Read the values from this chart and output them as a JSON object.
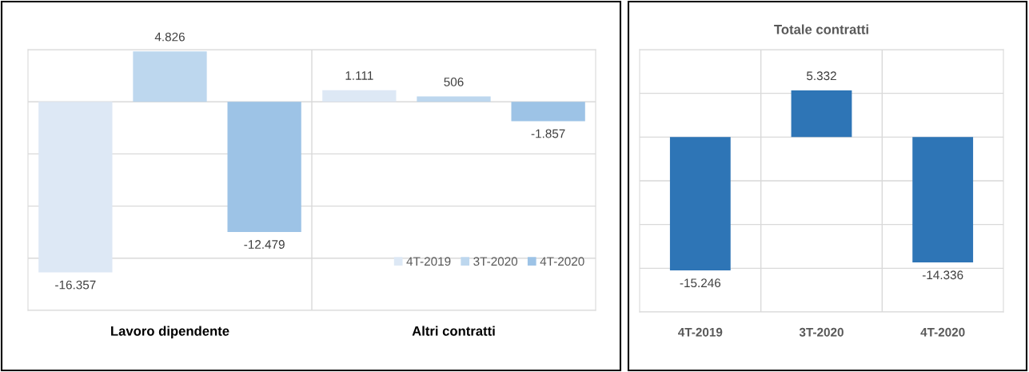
{
  "chart_data": [
    {
      "type": "bar",
      "categories": [
        "Lavoro dipendente",
        "Altri contratti"
      ],
      "series": [
        {
          "name": "4T-2019",
          "color": "#dde8f5",
          "values": [
            -16357,
            1111
          ],
          "value_labels": [
            "-16.357",
            "1.111"
          ]
        },
        {
          "name": "3T-2020",
          "color": "#bdd7ee",
          "values": [
            4826,
            506
          ],
          "value_labels": [
            "4.826",
            "506"
          ]
        },
        {
          "name": "4T-2020",
          "color": "#9dc3e6",
          "values": [
            -12479,
            -1857
          ],
          "value_labels": [
            "-12.479",
            "-1.857"
          ]
        }
      ],
      "ylim": [
        -20000,
        5000
      ],
      "yticks": [
        {
          "value": -20000,
          "label": null
        },
        {
          "value": -15000,
          "label": null
        },
        {
          "value": -10000,
          "label": null
        },
        {
          "value": -5000,
          "label": null
        },
        {
          "value": 0,
          "label": null
        },
        {
          "value": 5000,
          "label": null
        }
      ],
      "tick_labels": "x",
      "grid": true,
      "legend": "bottom right"
    },
    {
      "type": "bar",
      "title": "Totale contratti",
      "categories": [
        "4T-2019",
        "3T-2020",
        "4T-2020"
      ],
      "series": [
        {
          "color": "#2e75b6",
          "values": [
            -15246,
            5332,
            -14336
          ],
          "value_labels": [
            "-15.246",
            "5.332",
            "-14.336"
          ]
        }
      ],
      "ylim": [
        -20000,
        10000
      ],
      "yticks": [
        {
          "value": -20000,
          "label": null
        },
        {
          "value": -15000,
          "label": null
        },
        {
          "value": -10000,
          "label": null
        },
        {
          "value": -5000,
          "label": null
        },
        {
          "value": 0,
          "label": null
        },
        {
          "value": 5000,
          "label": null
        },
        {
          "value": 10000,
          "label": null
        }
      ],
      "tick_labels": "x",
      "grid": true,
      "legend": false
    }
  ]
}
